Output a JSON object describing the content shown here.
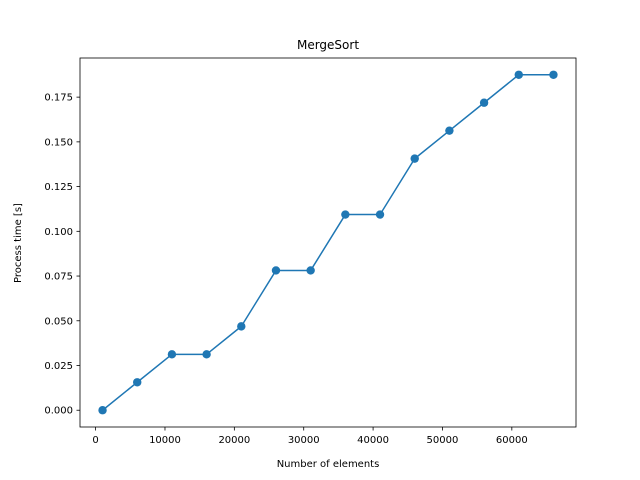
{
  "chart_data": {
    "type": "line",
    "title": "MergeSort",
    "xlabel": "Number of elements",
    "ylabel": "Process time [s]",
    "xlim": [
      -2250,
      69250
    ],
    "ylim": [
      -0.009375,
      0.196875
    ],
    "xticks": [
      0,
      10000,
      20000,
      30000,
      40000,
      50000,
      60000
    ],
    "yticks": [
      0.0,
      0.025,
      0.05,
      0.075,
      0.1,
      0.125,
      0.15,
      0.175
    ],
    "xtick_labels": [
      "0",
      "10000",
      "20000",
      "30000",
      "40000",
      "50000",
      "60000"
    ],
    "ytick_labels": [
      "0.000",
      "0.025",
      "0.050",
      "0.075",
      "0.100",
      "0.125",
      "0.150",
      "0.175"
    ],
    "grid": false,
    "series": [
      {
        "color": "#1f77b4",
        "marker": "circle",
        "x": [
          1000,
          6000,
          11000,
          16000,
          21000,
          26000,
          31000,
          36000,
          41000,
          46000,
          51000,
          56000,
          61000,
          66000
        ],
        "y": [
          0.0,
          0.015625,
          0.03125,
          0.03125,
          0.046875,
          0.078125,
          0.078125,
          0.109375,
          0.109375,
          0.140625,
          0.15625,
          0.171875,
          0.1875,
          0.1875
        ]
      }
    ]
  }
}
